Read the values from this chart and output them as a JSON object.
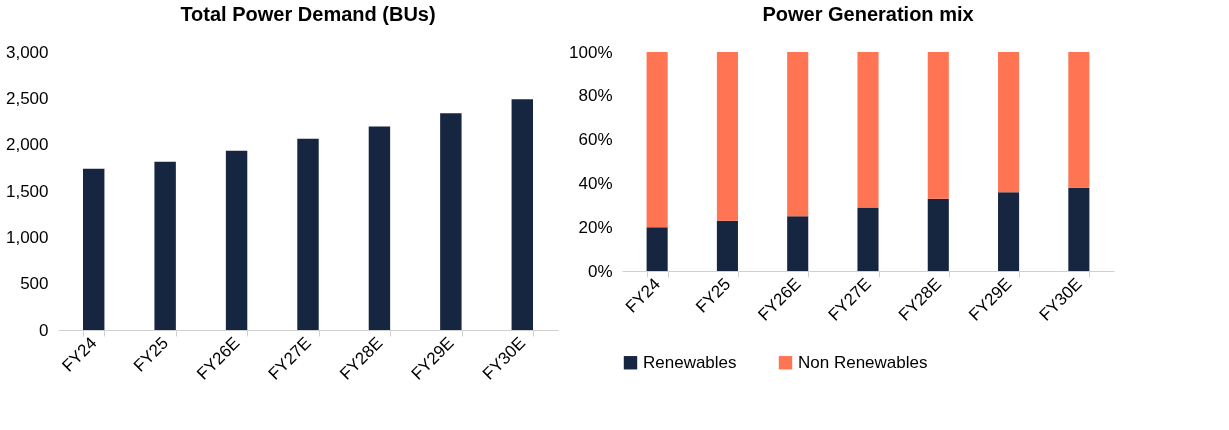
{
  "chart_data": [
    {
      "type": "bar",
      "title": "Total Power Demand (BUs)",
      "categories": [
        "FY24",
        "FY25",
        "FY26E",
        "FY27E",
        "FY28E",
        "FY29E",
        "FY30E"
      ],
      "values": [
        1740,
        1815,
        1935,
        2065,
        2195,
        2340,
        2490
      ],
      "color": "#172640",
      "ylim": [
        0,
        3000
      ],
      "yticks": [
        0,
        {
          "value": 500,
          "label": "500"
        },
        {
          "value": 1000,
          "label": "1,000"
        },
        {
          "value": 1500,
          "label": "1,500"
        },
        {
          "value": 2000,
          "label": "2,000"
        },
        {
          "value": 2500,
          "label": "2,500"
        },
        {
          "value": 3000,
          "label": "3,000"
        }
      ],
      "grid": false,
      "legend": false
    },
    {
      "type": "bar",
      "title": "Power Generation mix",
      "categories": [
        "FY24",
        "FY25",
        "FY26E",
        "FY27E",
        "FY28E",
        "FY29E",
        "FY30E"
      ],
      "stacked": true,
      "series": [
        {
          "name": "Renewables",
          "color": "#172640",
          "values": [
            20,
            23,
            25,
            29,
            33,
            36,
            38
          ]
        },
        {
          "name": "Non Renewables",
          "color": "#ff7452",
          "values": [
            80,
            77,
            75,
            71,
            67,
            64,
            62
          ]
        }
      ],
      "ylim": [
        0,
        100
      ],
      "yticks": [
        {
          "value": 0,
          "label": "0%"
        },
        {
          "value": 20,
          "label": "20%"
        },
        {
          "value": 40,
          "label": "40%"
        },
        {
          "value": 60,
          "label": "60%"
        },
        {
          "value": 80,
          "label": "80%"
        },
        {
          "value": 100,
          "label": "100%"
        }
      ],
      "grid": false,
      "legend": "bottom"
    }
  ]
}
